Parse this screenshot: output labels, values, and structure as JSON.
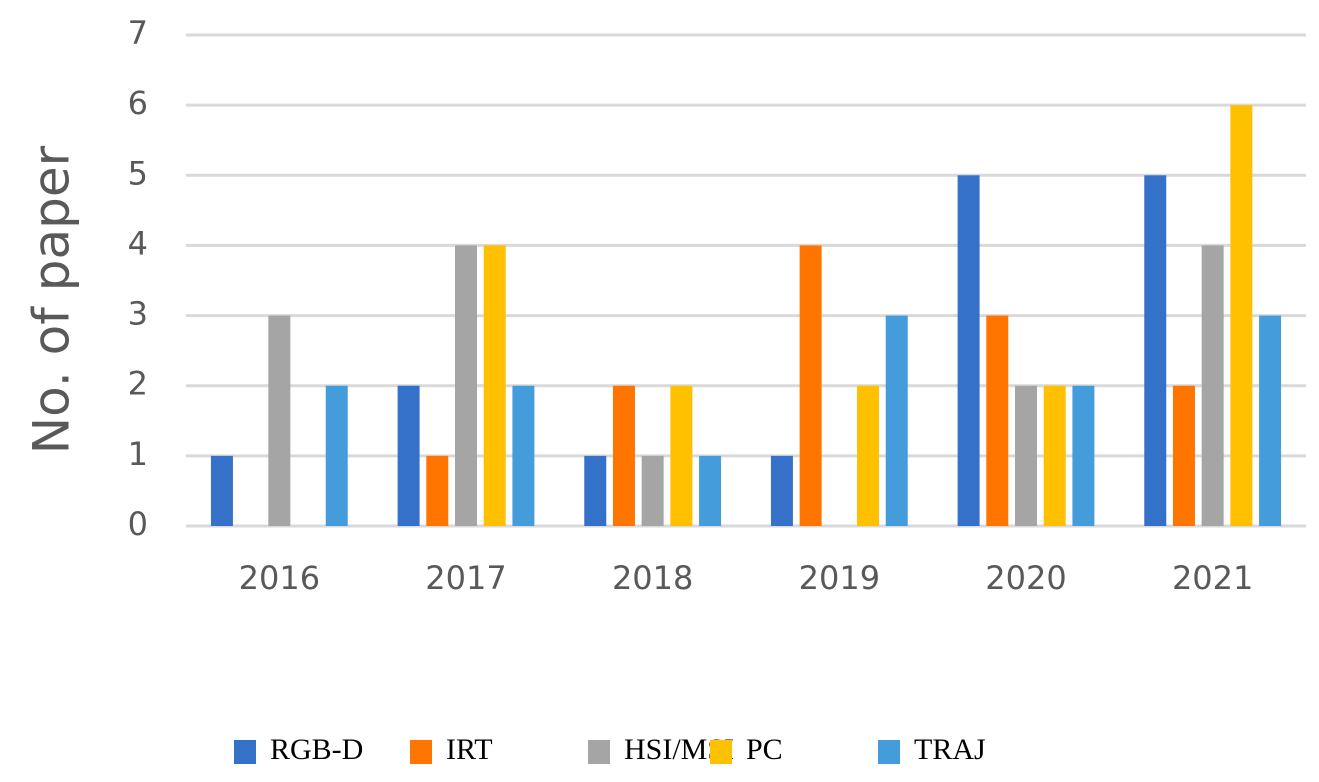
{
  "chart_data": {
    "type": "bar",
    "title": "",
    "xlabel": "",
    "ylabel": "No. of paper",
    "ylim": [
      0,
      7
    ],
    "yticks": [
      "0",
      "1",
      "2",
      "3",
      "4",
      "5",
      "6",
      "7"
    ],
    "grid": true,
    "legend_position": "bottom",
    "categories": [
      "2016",
      "2017",
      "2018",
      "2019",
      "2020",
      "2021"
    ],
    "series": [
      {
        "name": "RGB-D",
        "color": "#3671C9",
        "values": [
          1,
          2,
          1,
          1,
          5,
          5
        ]
      },
      {
        "name": "IRT",
        "color": "#FF7500",
        "values": [
          0,
          1,
          2,
          4,
          3,
          2
        ]
      },
      {
        "name": "HSI/MSI",
        "color": "#A5A5A5",
        "values": [
          3,
          4,
          1,
          0,
          2,
          4
        ]
      },
      {
        "name": "PC",
        "color": "#FFC000",
        "values": [
          0,
          4,
          2,
          2,
          2,
          6
        ]
      },
      {
        "name": "TRAJ",
        "color": "#459CDB",
        "values": [
          2,
          2,
          1,
          3,
          2,
          3
        ]
      }
    ]
  }
}
